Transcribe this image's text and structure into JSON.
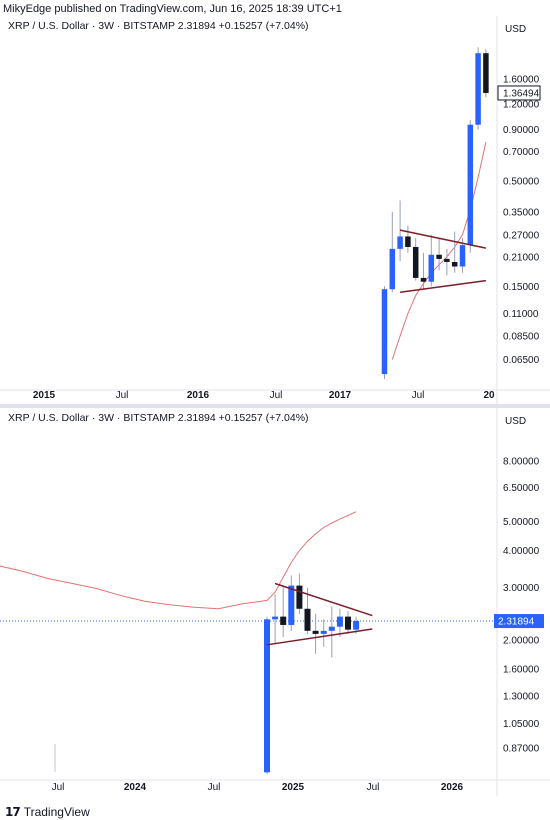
{
  "header": {
    "text": "MikyEdge published on TradingView.com, Jun 16, 2025 18:39 UTC+1"
  },
  "footer": {
    "logo_icon": "tradingview-logo-icon",
    "brand": "TradingView"
  },
  "colors": {
    "bull": "#2962ff",
    "bear": "#131722",
    "ma": "#e57373",
    "trend": "#7b1e2b",
    "price_line": "#2962ff",
    "grid": "#f0f3fa"
  },
  "chart_data": [
    {
      "type": "candlestick",
      "legend": "XRP / U.S. Dollar · 3W · BITSTAMP  2.31894  +0.15257 (+7.04%)",
      "axis_unit": "USD",
      "y_scale": "log",
      "ylim": [
        0.048,
        2.5
      ],
      "y_ticks": [
        1.6,
        1.2,
        0.9,
        0.7,
        0.5,
        0.35,
        0.27,
        0.21,
        0.15,
        0.11,
        0.085,
        0.065
      ],
      "y_tick_labels": [
        "1.60000",
        "1.20000",
        "0.90000",
        "0.70000",
        "0.50000",
        "0.35000",
        "0.27000",
        "0.21000",
        "0.15000",
        "0.11000",
        "0.08500",
        "0.06500"
      ],
      "price_label": "1.36494",
      "price_label_value": 1.36494,
      "x_tick_labels": [
        "2015",
        "Jul",
        "2016",
        "Jul",
        "2017",
        "Jul",
        "20"
      ],
      "candles": [
        {
          "t": 0,
          "o": 0.055,
          "h": 0.15,
          "l": 0.052,
          "c": 0.145
        },
        {
          "t": 1,
          "o": 0.145,
          "h": 0.35,
          "l": 0.14,
          "c": 0.23
        },
        {
          "t": 2,
          "o": 0.23,
          "h": 0.4,
          "l": 0.2,
          "c": 0.265
        },
        {
          "t": 3,
          "o": 0.265,
          "h": 0.3,
          "l": 0.22,
          "c": 0.235
        },
        {
          "t": 4,
          "o": 0.235,
          "h": 0.26,
          "l": 0.16,
          "c": 0.165
        },
        {
          "t": 5,
          "o": 0.165,
          "h": 0.22,
          "l": 0.145,
          "c": 0.158
        },
        {
          "t": 6,
          "o": 0.158,
          "h": 0.27,
          "l": 0.15,
          "c": 0.215
        },
        {
          "t": 7,
          "o": 0.215,
          "h": 0.26,
          "l": 0.18,
          "c": 0.205
        },
        {
          "t": 8,
          "o": 0.205,
          "h": 0.23,
          "l": 0.17,
          "c": 0.198
        },
        {
          "t": 9,
          "o": 0.198,
          "h": 0.28,
          "l": 0.175,
          "c": 0.188
        },
        {
          "t": 10,
          "o": 0.188,
          "h": 0.26,
          "l": 0.175,
          "c": 0.24
        },
        {
          "t": 11,
          "o": 0.24,
          "h": 1.0,
          "l": 0.22,
          "c": 0.95
        },
        {
          "t": 12,
          "o": 0.95,
          "h": 2.3,
          "l": 0.9,
          "c": 2.15
        },
        {
          "t": 13,
          "o": 2.15,
          "h": 2.25,
          "l": 1.3,
          "c": 1.365
        }
      ],
      "moving_average": [
        {
          "t": 1,
          "v": 0.065
        },
        {
          "t": 2,
          "v": 0.085
        },
        {
          "t": 3,
          "v": 0.11
        },
        {
          "t": 4,
          "v": 0.135
        },
        {
          "t": 5,
          "v": 0.155
        },
        {
          "t": 6,
          "v": 0.175
        },
        {
          "t": 7,
          "v": 0.192
        },
        {
          "t": 8,
          "v": 0.21
        },
        {
          "t": 9,
          "v": 0.235
        },
        {
          "t": 10,
          "v": 0.27
        },
        {
          "t": 11,
          "v": 0.36
        },
        {
          "t": 12,
          "v": 0.52
        },
        {
          "t": 13,
          "v": 0.78
        }
      ],
      "trendlines": [
        {
          "t1": 2,
          "v1": 0.285,
          "t2": 13,
          "v2": 0.232
        },
        {
          "t1": 2,
          "v1": 0.14,
          "t2": 13,
          "v2": 0.16
        }
      ]
    },
    {
      "type": "candlestick",
      "legend": "XRP / U.S. Dollar · 3W · BITSTAMP  2.31894  +0.15257 (+7.04%)",
      "axis_unit": "USD",
      "y_scale": "log",
      "ylim": [
        0.7,
        10.0
      ],
      "y_ticks": [
        8.0,
        6.5,
        5.0,
        4.0,
        3.0,
        2.0,
        1.6,
        1.3,
        1.05,
        0.87
      ],
      "y_tick_labels": [
        "8.00000",
        "6.50000",
        "5.00000",
        "4.00000",
        "3.00000",
        "2.00000",
        "1.60000",
        "1.30000",
        "1.05000",
        "0.87000"
      ],
      "price_label": "2.31894",
      "price_label_value": 2.31894,
      "x_tick_labels": [
        "Jul",
        "2024",
        "Jul",
        "2025",
        "Jul",
        "2026"
      ],
      "candles": [
        {
          "t": 0,
          "o": 0.72,
          "h": 2.4,
          "l": 0.71,
          "c": 2.35
        },
        {
          "t": 1,
          "o": 2.35,
          "h": 2.85,
          "l": 1.95,
          "c": 2.4
        },
        {
          "t": 2,
          "o": 2.4,
          "h": 3.05,
          "l": 2.05,
          "c": 2.25
        },
        {
          "t": 3,
          "o": 2.25,
          "h": 3.3,
          "l": 2.15,
          "c": 3.05
        },
        {
          "t": 4,
          "o": 3.05,
          "h": 3.35,
          "l": 2.45,
          "c": 2.55
        },
        {
          "t": 5,
          "o": 2.55,
          "h": 3.0,
          "l": 2.1,
          "c": 2.15
        },
        {
          "t": 6,
          "o": 2.15,
          "h": 2.45,
          "l": 1.8,
          "c": 2.1
        },
        {
          "t": 7,
          "o": 2.1,
          "h": 2.35,
          "l": 1.9,
          "c": 2.15
        },
        {
          "t": 8,
          "o": 2.15,
          "h": 2.6,
          "l": 1.75,
          "c": 2.22
        },
        {
          "t": 9,
          "o": 2.22,
          "h": 2.55,
          "l": 2.05,
          "c": 2.4
        },
        {
          "t": 10,
          "o": 2.4,
          "h": 2.5,
          "l": 2.1,
          "c": 2.17
        },
        {
          "t": 11,
          "o": 2.17,
          "h": 2.4,
          "l": 2.1,
          "c": 2.32
        }
      ],
      "moving_average": [
        {
          "t": -33,
          "v": 3.55
        },
        {
          "t": -30,
          "v": 3.4
        },
        {
          "t": -27,
          "v": 3.22
        },
        {
          "t": -24,
          "v": 3.1
        },
        {
          "t": -21,
          "v": 2.98
        },
        {
          "t": -18,
          "v": 2.82
        },
        {
          "t": -15,
          "v": 2.7
        },
        {
          "t": -12,
          "v": 2.63
        },
        {
          "t": -9,
          "v": 2.58
        },
        {
          "t": -6,
          "v": 2.55
        },
        {
          "t": -3,
          "v": 2.65
        },
        {
          "t": 0,
          "v": 2.72
        },
        {
          "t": 1,
          "v": 2.9
        },
        {
          "t": 2,
          "v": 3.25
        },
        {
          "t": 3,
          "v": 3.65
        },
        {
          "t": 4,
          "v": 4.0
        },
        {
          "t": 5,
          "v": 4.3
        },
        {
          "t": 6,
          "v": 4.55
        },
        {
          "t": 7,
          "v": 4.78
        },
        {
          "t": 8,
          "v": 4.95
        },
        {
          "t": 9,
          "v": 5.1
        },
        {
          "t": 10,
          "v": 5.25
        },
        {
          "t": 11,
          "v": 5.4
        }
      ],
      "trendlines": [
        {
          "t1": 1,
          "v1": 3.1,
          "t2": 13,
          "v2": 2.42
        },
        {
          "t1": 0,
          "v1": 1.93,
          "t2": 13,
          "v2": 2.18
        }
      ]
    }
  ]
}
